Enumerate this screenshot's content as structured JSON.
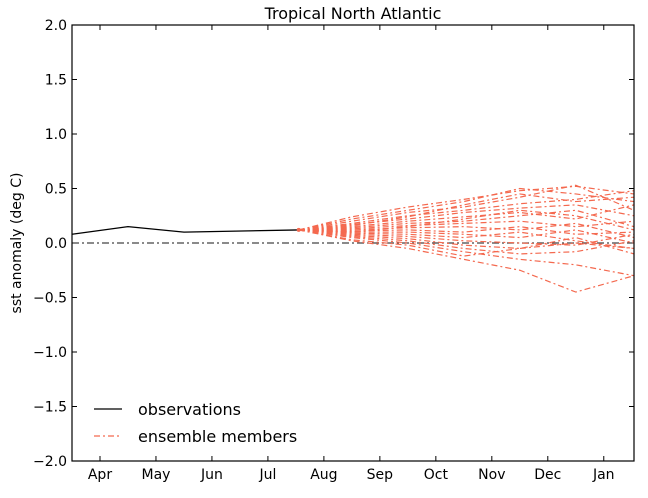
{
  "chart_data": {
    "type": "line",
    "title": "Tropical North Atlantic",
    "xlabel": "",
    "ylabel": "sst anomaly (deg C)",
    "ylim": [
      -2.0,
      2.0
    ],
    "xlim": [
      -0.5,
      9.54
    ],
    "yticks": [
      "2.0",
      "1.5",
      "1.0",
      "0.5",
      "0.0",
      "−0.5",
      "−1.0",
      "−1.5",
      "−2.0"
    ],
    "ytick_values": [
      2.0,
      1.5,
      1.0,
      0.5,
      0.0,
      -0.5,
      -1.0,
      -1.5,
      -2.0
    ],
    "xticks": [
      "Apr",
      "May",
      "Jun",
      "Jul",
      "Aug",
      "Sep",
      "Oct",
      "Nov",
      "Dec",
      "Jan"
    ],
    "legend": {
      "placement": "lower-left",
      "entries": [
        "observations",
        "ensemble members"
      ]
    },
    "colors": {
      "observations": "#000000",
      "ensemble": "#f4694f",
      "zero_line": "#444444"
    },
    "observations": {
      "x": [
        -0.5,
        0.5,
        1.5,
        3.55
      ],
      "y": [
        0.08,
        0.15,
        0.1,
        0.12
      ]
    },
    "ensemble_x": [
      3.55,
      4.5,
      5.5,
      6.5,
      7.5,
      8.5,
      9.54
    ],
    "ensemble": [
      [
        0.12,
        0.24,
        0.33,
        0.4,
        0.48,
        0.52,
        0.45
      ],
      [
        0.12,
        0.22,
        0.3,
        0.38,
        0.5,
        0.45,
        0.38
      ],
      [
        0.12,
        0.2,
        0.28,
        0.33,
        0.42,
        0.53,
        0.3
      ],
      [
        0.12,
        0.18,
        0.25,
        0.3,
        0.36,
        0.4,
        0.48
      ],
      [
        0.12,
        0.17,
        0.22,
        0.28,
        0.32,
        0.35,
        0.25
      ],
      [
        0.12,
        0.15,
        0.2,
        0.24,
        0.28,
        0.22,
        0.35
      ],
      [
        0.12,
        0.14,
        0.18,
        0.2,
        0.25,
        0.3,
        0.15
      ],
      [
        0.12,
        0.13,
        0.16,
        0.18,
        0.2,
        0.15,
        0.2
      ],
      [
        0.12,
        0.12,
        0.14,
        0.15,
        0.12,
        0.18,
        0.05
      ],
      [
        0.12,
        0.11,
        0.12,
        0.1,
        0.15,
        0.08,
        0.1
      ],
      [
        0.12,
        0.1,
        0.1,
        0.08,
        0.05,
        0.12,
        0.0
      ],
      [
        0.12,
        0.09,
        0.08,
        0.05,
        0.1,
        0.02,
        -0.05
      ],
      [
        0.12,
        0.08,
        0.06,
        0.02,
        0.0,
        -0.02,
        0.08
      ],
      [
        0.12,
        0.07,
        0.04,
        -0.02,
        -0.05,
        0.05,
        -0.1
      ],
      [
        0.12,
        0.06,
        0.02,
        -0.05,
        -0.1,
        -0.08,
        0.02
      ],
      [
        0.12,
        0.05,
        0.0,
        -0.08,
        -0.15,
        -0.2,
        -0.3
      ],
      [
        0.12,
        0.03,
        -0.02,
        -0.12,
        -0.05,
        0.0,
        -0.05
      ],
      [
        0.12,
        0.02,
        -0.05,
        -0.15,
        -0.25,
        -0.45,
        -0.3
      ],
      [
        0.12,
        0.16,
        0.24,
        0.35,
        0.45,
        0.38,
        0.42
      ],
      [
        0.12,
        0.1,
        0.15,
        0.22,
        0.3,
        0.25,
        0.12
      ]
    ]
  }
}
